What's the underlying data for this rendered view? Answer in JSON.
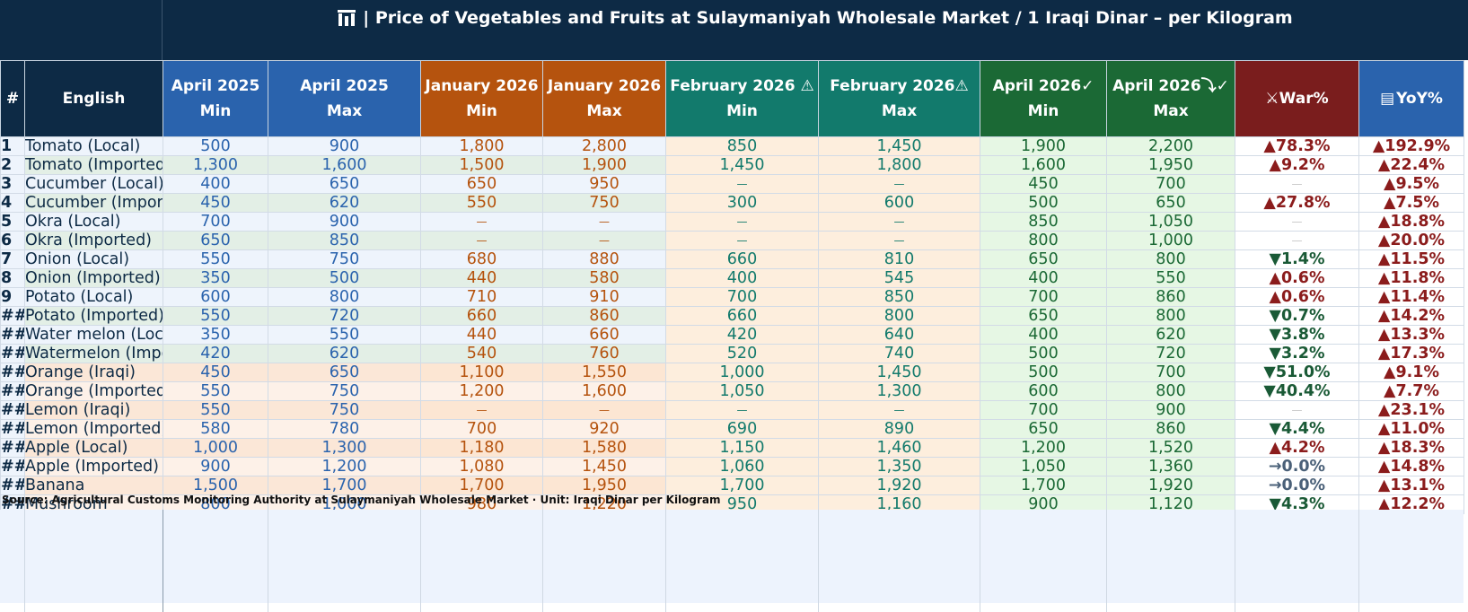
{
  "title": "| Price of Vegetables and Fruits at Sulaymaniyah Wholesale Market / 1 Iraqi Dinar – per Kilogram",
  "colors": {
    "navy": "#0d2a45",
    "blue": "#2a63ad",
    "orange": "#b5530e",
    "teal": "#127a6c",
    "green": "#1b6935",
    "maroon": "#7a1d1d",
    "yoy_blue": "#2a63ad"
  },
  "headers": [
    {
      "line1": "#",
      "line2": ""
    },
    {
      "line1": "English",
      "line2": ""
    },
    {
      "line1": "April 2025",
      "line2": "Min"
    },
    {
      "line1": "April 2025",
      "line2": "Max"
    },
    {
      "line1": "January 2026",
      "line2": "Min"
    },
    {
      "line1": "January 2026",
      "line2": "Max"
    },
    {
      "line1": "February 2026 ⚠",
      "line2": "Min"
    },
    {
      "line1": "February 2026⚠",
      "line2": "Max"
    },
    {
      "line1": "April 2026✓",
      "line2": "Min"
    },
    {
      "line1": "April 2026⤵✓",
      "line2": "Max"
    },
    {
      "line1": "⚔War%",
      "line2": ""
    },
    {
      "line1": "YoY%",
      "line2": ""
    }
  ],
  "rows": [
    {
      "idx": "1",
      "name": "Tomato (Local)",
      "a_min": "500",
      "a_max": "900",
      "j_min": "1,800",
      "j_max": "2,800",
      "f_min": "850",
      "f_max": "1,450",
      "p_min": "1,900",
      "p_max": "2,200",
      "war": "▲78.3%",
      "war_dir": "up",
      "yoy": "▲192.9%"
    },
    {
      "idx": "2",
      "name": "Tomato (Imported)",
      "a_min": "1,300",
      "a_max": "1,600",
      "j_min": "1,500",
      "j_max": "1,900",
      "f_min": "1,450",
      "f_max": "1,800",
      "p_min": "1,600",
      "p_max": "1,950",
      "war": "▲9.2%",
      "war_dir": "up",
      "yoy": "▲22.4%"
    },
    {
      "idx": "3",
      "name": "Cucumber (Local)",
      "a_min": "400",
      "a_max": "650",
      "j_min": "650",
      "j_max": "950",
      "f_min": "—",
      "f_max": "—",
      "p_min": "450",
      "p_max": "700",
      "war": "—",
      "war_dir": "none",
      "yoy": "▲9.5%"
    },
    {
      "idx": "4",
      "name": "Cucumber (Imported)",
      "a_min": "450",
      "a_max": "620",
      "j_min": "550",
      "j_max": "750",
      "f_min": "300",
      "f_max": "600",
      "p_min": "500",
      "p_max": "650",
      "war": "▲27.8%",
      "war_dir": "up",
      "yoy": "▲7.5%"
    },
    {
      "idx": "5",
      "name": "Okra (Local)",
      "a_min": "700",
      "a_max": "900",
      "j_min": "—",
      "j_max": "—",
      "f_min": "—",
      "f_max": "—",
      "p_min": "850",
      "p_max": "1,050",
      "war": "—",
      "war_dir": "none",
      "yoy": "▲18.8%"
    },
    {
      "idx": "6",
      "name": "Okra (Imported)",
      "a_min": "650",
      "a_max": "850",
      "j_min": "—",
      "j_max": "—",
      "f_min": "—",
      "f_max": "—",
      "p_min": "800",
      "p_max": "1,000",
      "war": "—",
      "war_dir": "none",
      "yoy": "▲20.0%"
    },
    {
      "idx": "7",
      "name": "Onion (Local)",
      "a_min": "550",
      "a_max": "750",
      "j_min": "680",
      "j_max": "880",
      "f_min": "660",
      "f_max": "810",
      "p_min": "650",
      "p_max": "800",
      "war": "▼1.4%",
      "war_dir": "down",
      "yoy": "▲11.5%"
    },
    {
      "idx": "8",
      "name": "Onion (Imported)",
      "a_min": "350",
      "a_max": "500",
      "j_min": "440",
      "j_max": "580",
      "f_min": "400",
      "f_max": "545",
      "p_min": "400",
      "p_max": "550",
      "war": "▲0.6%",
      "war_dir": "up",
      "yoy": "▲11.8%"
    },
    {
      "idx": "9",
      "name": "Potato (Local)",
      "a_min": "600",
      "a_max": "800",
      "j_min": "710",
      "j_max": "910",
      "f_min": "700",
      "f_max": "850",
      "p_min": "700",
      "p_max": "860",
      "war": "▲0.6%",
      "war_dir": "up",
      "yoy": "▲11.4%"
    },
    {
      "idx": "##",
      "name": "Potato (Imported)",
      "a_min": "550",
      "a_max": "720",
      "j_min": "660",
      "j_max": "860",
      "f_min": "660",
      "f_max": "800",
      "p_min": "650",
      "p_max": "800",
      "war": "▼0.7%",
      "war_dir": "down",
      "yoy": "▲14.2%"
    },
    {
      "idx": "##",
      "name": "Water melon (Local)",
      "a_min": "350",
      "a_max": "550",
      "j_min": "440",
      "j_max": "660",
      "f_min": "420",
      "f_max": "640",
      "p_min": "400",
      "p_max": "620",
      "war": "▼3.8%",
      "war_dir": "down",
      "yoy": "▲13.3%"
    },
    {
      "idx": "##",
      "name": "Watermelon (Imported)",
      "a_min": "420",
      "a_max": "620",
      "j_min": "540",
      "j_max": "760",
      "f_min": "520",
      "f_max": "740",
      "p_min": "500",
      "p_max": "720",
      "war": "▼3.2%",
      "war_dir": "down",
      "yoy": "▲17.3%"
    },
    {
      "idx": "##",
      "name": "Orange (Iraqi)",
      "a_min": "450",
      "a_max": "650",
      "j_min": "1,100",
      "j_max": "1,550",
      "f_min": "1,000",
      "f_max": "1,450",
      "p_min": "500",
      "p_max": "700",
      "war": "▼51.0%",
      "war_dir": "down",
      "yoy": "▲9.1%"
    },
    {
      "idx": "##",
      "name": "Orange (Imported)",
      "a_min": "550",
      "a_max": "750",
      "j_min": "1,200",
      "j_max": "1,600",
      "f_min": "1,050",
      "f_max": "1,300",
      "p_min": "600",
      "p_max": "800",
      "war": "▼40.4%",
      "war_dir": "down",
      "yoy": "▲7.7%"
    },
    {
      "idx": "##",
      "name": "Lemon (Iraqi)",
      "a_min": "550",
      "a_max": "750",
      "j_min": "—",
      "j_max": "—",
      "f_min": "—",
      "f_max": "—",
      "p_min": "700",
      "p_max": "900",
      "war": "—",
      "war_dir": "none",
      "yoy": "▲23.1%"
    },
    {
      "idx": "##",
      "name": "Lemon (Imported)",
      "a_min": "580",
      "a_max": "780",
      "j_min": "700",
      "j_max": "920",
      "f_min": "690",
      "f_max": "890",
      "p_min": "650",
      "p_max": "860",
      "war": "▼4.4%",
      "war_dir": "down",
      "yoy": "▲11.0%"
    },
    {
      "idx": "##",
      "name": "Apple (Local)",
      "a_min": "1,000",
      "a_max": "1,300",
      "j_min": "1,180",
      "j_max": "1,580",
      "f_min": "1,150",
      "f_max": "1,460",
      "p_min": "1,200",
      "p_max": "1,520",
      "war": "▲4.2%",
      "war_dir": "up",
      "yoy": "▲18.3%"
    },
    {
      "idx": "##",
      "name": "Apple (Imported)",
      "a_min": "900",
      "a_max": "1,200",
      "j_min": "1,080",
      "j_max": "1,450",
      "f_min": "1,060",
      "f_max": "1,350",
      "p_min": "1,050",
      "p_max": "1,360",
      "war": "→0.0%",
      "war_dir": "flat",
      "yoy": "▲14.8%"
    },
    {
      "idx": "##",
      "name": "Banana",
      "a_min": "1,500",
      "a_max": "1,700",
      "j_min": "1,700",
      "j_max": "1,950",
      "f_min": "1,700",
      "f_max": "1,920",
      "p_min": "1,700",
      "p_max": "1,920",
      "war": "→0.0%",
      "war_dir": "flat",
      "yoy": "▲13.1%"
    },
    {
      "idx": "##",
      "name": "Mushroom",
      "a_min": "800",
      "a_max": "1,000",
      "j_min": "980",
      "j_max": "1,220",
      "f_min": "950",
      "f_max": "1,160",
      "p_min": "900",
      "p_max": "1,120",
      "war": "▼4.3%",
      "war_dir": "down",
      "yoy": "▲12.2%"
    }
  ],
  "source": "Source: Agricultural Customs Monitoring Authority at Sulaymaniyah Wholesale Market · Unit: Iraqi Dinar per Kilogram"
}
